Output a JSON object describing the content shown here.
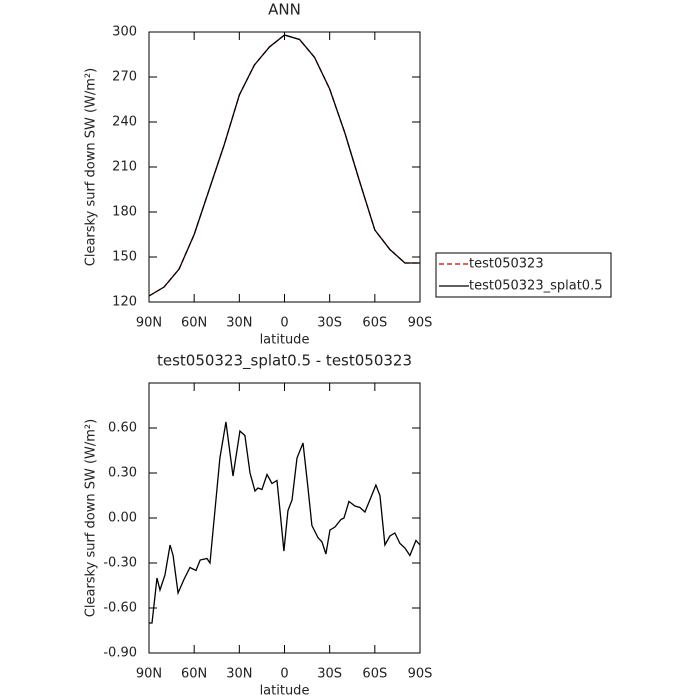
{
  "chart_data": [
    {
      "type": "line",
      "title": "ANN",
      "xlabel": "latitude",
      "ylabel": "Clearsky surf down SW (W/m²)",
      "x": [
        90,
        80,
        70,
        60,
        50,
        40,
        30,
        20,
        10,
        0,
        -10,
        -20,
        -30,
        -40,
        -50,
        -60,
        -70,
        -80,
        -90
      ],
      "series": [
        {
          "name": "test050323",
          "color": "#cc0000",
          "dashed": true,
          "values": [
            124,
            130,
            142,
            165,
            195,
            225,
            258,
            278,
            290,
            298,
            295,
            283,
            262,
            233,
            200,
            168,
            155,
            146,
            146
          ]
        },
        {
          "name": "test050323_splat0.5",
          "color": "#000000",
          "dashed": false,
          "values": [
            124,
            130,
            142,
            165,
            195,
            225,
            258,
            278,
            290,
            298,
            295,
            283,
            262,
            233,
            200,
            168,
            155,
            146,
            146
          ]
        }
      ],
      "xlim": [
        90,
        -90
      ],
      "xticks": [
        {
          "value": 90,
          "label": "90N"
        },
        {
          "value": 60,
          "label": "60N"
        },
        {
          "value": 30,
          "label": "30N"
        },
        0,
        {
          "value": -30,
          "label": "30S"
        },
        {
          "value": -60,
          "label": "60S"
        },
        {
          "value": -90,
          "label": "90S"
        }
      ],
      "ylim": [
        120,
        300
      ],
      "yticks": [
        120,
        150,
        180,
        210,
        240,
        270,
        300
      ],
      "legend": "outside-right"
    },
    {
      "type": "line",
      "title": "test050323_splat0.5 - test050323",
      "xlabel": "latitude",
      "ylabel": "Clearsky surf down SW (W/m²)",
      "x": [
        90,
        88,
        84.7,
        82.7,
        79.4,
        76,
        74,
        70.7,
        66.8,
        62.8,
        58.8,
        56,
        51.5,
        49.5,
        42.9,
        38.9,
        34.2,
        29.6,
        26.3,
        22.9,
        19.6,
        17.6,
        15,
        11.6,
        8.3,
        5,
        3,
        0.4,
        -2.3,
        -5,
        -8.3,
        -12.3,
        -15.6,
        -18.2,
        -22.2,
        -24.9,
        -27.5,
        -30.2,
        -33.5,
        -37.5,
        -39.5,
        -42.8,
        -46.8,
        -50.1,
        -53.4,
        -56.7,
        -60.7,
        -63.4,
        -66.7,
        -70,
        -73.3,
        -76.7,
        -80,
        -83.3,
        -87.3,
        -90
      ],
      "values": [
        -0.7,
        -0.7,
        -0.4,
        -0.48,
        -0.38,
        -0.18,
        -0.25,
        -0.5,
        -0.41,
        -0.33,
        -0.35,
        -0.28,
        -0.27,
        -0.3,
        0.4,
        0.64,
        0.28,
        0.58,
        0.55,
        0.3,
        0.18,
        0.2,
        0.19,
        0.29,
        0.23,
        0.25,
        0.05,
        -0.22,
        0.05,
        0.12,
        0.4,
        0.5,
        0.2,
        -0.05,
        -0.13,
        -0.16,
        -0.24,
        -0.08,
        -0.06,
        -0.01,
        0,
        0.11,
        0.08,
        0.07,
        0.04,
        0.12,
        0.22,
        0.15,
        -0.18,
        -0.12,
        -0.1,
        -0.17,
        -0.2,
        -0.25,
        -0.15,
        -0.18
      ],
      "color": "#000000",
      "xlim": [
        90,
        -90
      ],
      "xticks": [
        {
          "value": 90,
          "label": "90N"
        },
        {
          "value": 60,
          "label": "60N"
        },
        {
          "value": 30,
          "label": "30N"
        },
        0,
        {
          "value": -30,
          "label": "30S"
        },
        {
          "value": -60,
          "label": "60S"
        },
        {
          "value": -90,
          "label": "90S"
        }
      ],
      "ylim": [
        -0.9,
        0.9
      ],
      "yticks": [
        {
          "value": -0.9,
          "label": "-0.90"
        },
        {
          "value": -0.6,
          "label": "-0.60"
        },
        {
          "value": -0.3,
          "label": "-0.30"
        },
        {
          "value": 0,
          "label": "0.00"
        },
        {
          "value": 0.3,
          "label": "0.30"
        },
        {
          "value": 0.6,
          "label": "0.60"
        }
      ]
    }
  ]
}
